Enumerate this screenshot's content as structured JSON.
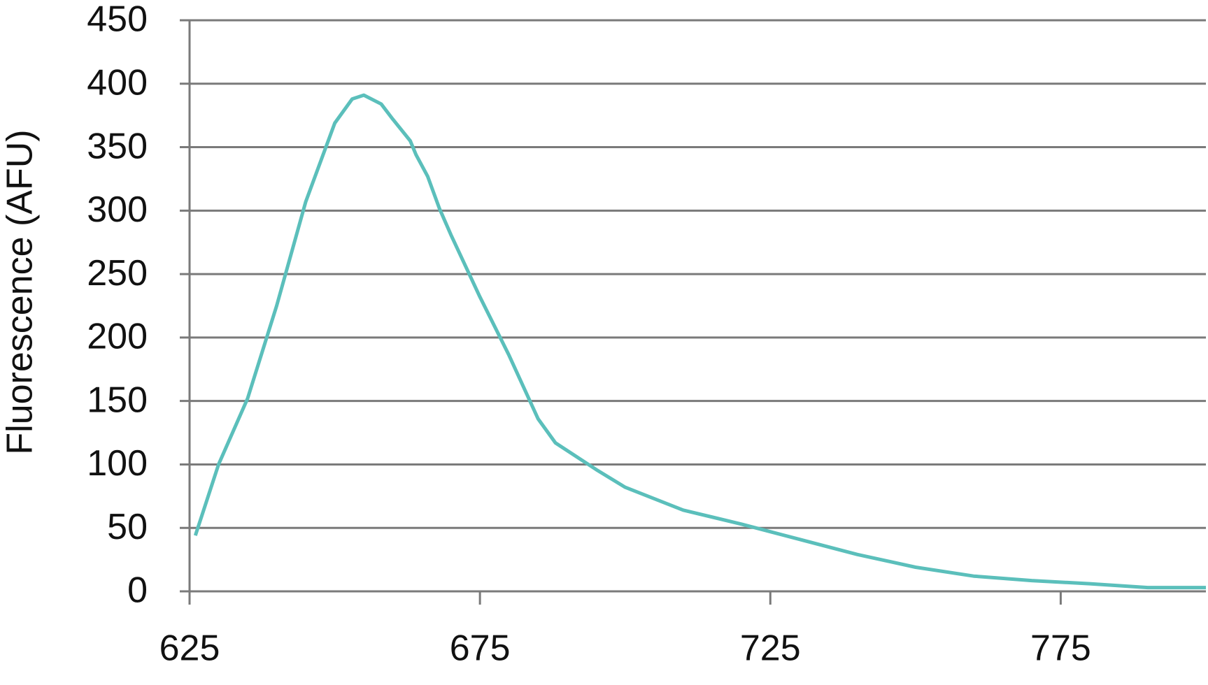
{
  "chart_data": {
    "type": "line",
    "ylabel": "Fluorescence (AFU)",
    "x": [
      626,
      630,
      635,
      640,
      645,
      650,
      653,
      655,
      658,
      660,
      663,
      664,
      666,
      668,
      670,
      675,
      680,
      685,
      688,
      690,
      695,
      700,
      710,
      720,
      725,
      730,
      740,
      750,
      760,
      770,
      780,
      790,
      800
    ],
    "series": [
      {
        "color": "#5bbfbb",
        "values": [
          44,
          100,
          152,
          225,
          307,
          369,
          388,
          391,
          384,
          372,
          355,
          344,
          327,
          302,
          281,
          232,
          186,
          136,
          117,
          111,
          96,
          82,
          64,
          53,
          47,
          41,
          29,
          19,
          12,
          8.5,
          6,
          3,
          3
        ]
      }
    ],
    "xlim": [
      625,
      800
    ],
    "xticks": [
      625,
      675,
      725,
      775
    ],
    "ylim": [
      0,
      450
    ],
    "yticks": [
      0,
      50,
      100,
      150,
      200,
      250,
      300,
      350,
      400,
      450
    ],
    "grid": true
  }
}
